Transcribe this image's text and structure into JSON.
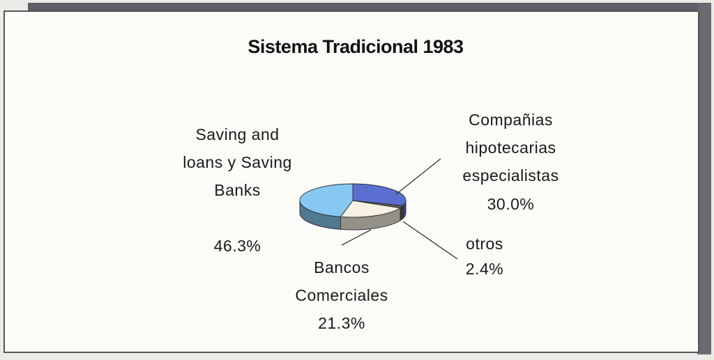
{
  "chart_data": {
    "type": "pie",
    "title": "Sistema Tradicional 1983",
    "categories": [
      "Compañias hipotecarias especialistas",
      "otros",
      "Bancos Comerciales",
      "Saving and loans y Saving Banks"
    ],
    "values": [
      30.0,
      2.4,
      21.3,
      46.3
    ],
    "value_labels": [
      "30.0%",
      "2.4%",
      "21.3%",
      "46.3%"
    ],
    "colors": [
      "#5a6fd0",
      "#5a5a58",
      "#f6f1e2",
      "#86c8f2"
    ]
  }
}
